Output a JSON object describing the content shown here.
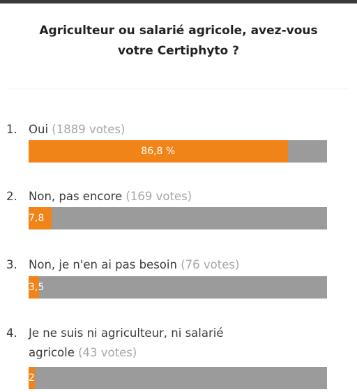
{
  "poll": {
    "title_line1": "Agriculteur ou salarié agricole, avez-vous",
    "title_line2": "votre Certiphyto ?",
    "options": [
      {
        "number": "1.",
        "label": "Oui",
        "votes": "(1889 votes)",
        "percent_label": "86,8 %",
        "percent": 86.8,
        "bar_color": "#f08419"
      },
      {
        "number": "2.",
        "label": "Non, pas encore",
        "votes": "(169 votes)",
        "percent_label": "7,8",
        "percent": 7.8,
        "bar_color": "#f08419"
      },
      {
        "number": "3.",
        "label": "Non, je n'en ai pas besoin",
        "votes": "(76 votes)",
        "percent_label": "3,5",
        "percent": 3.5,
        "bar_color": "#f08419"
      },
      {
        "number": "4.",
        "label_line1": "Je ne suis ni agriculteur, ni salarié",
        "label_line2": "agricole",
        "votes": "(43 votes)",
        "percent_label": "2",
        "percent": 2,
        "bar_color": "#f08419"
      }
    ],
    "track_color": "#9b9b9b"
  }
}
